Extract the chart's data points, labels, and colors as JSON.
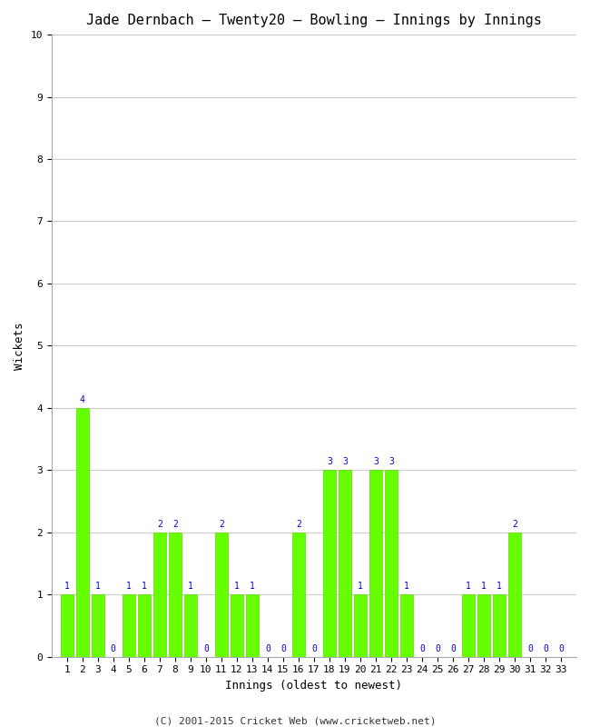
{
  "title": "Jade Dernbach – Twenty20 – Bowling – Innings by Innings",
  "xlabel": "Innings (oldest to newest)",
  "ylabel": "Wickets",
  "ylim": [
    0,
    10
  ],
  "yticks": [
    0,
    1,
    2,
    3,
    4,
    5,
    6,
    7,
    8,
    9,
    10
  ],
  "innings": [
    1,
    2,
    3,
    4,
    5,
    6,
    7,
    8,
    9,
    10,
    11,
    12,
    13,
    14,
    15,
    16,
    17,
    18,
    19,
    20,
    21,
    22,
    23,
    24,
    25,
    26,
    27,
    28,
    29,
    30,
    31,
    32,
    33
  ],
  "wickets": [
    1,
    4,
    1,
    0,
    1,
    1,
    2,
    2,
    1,
    0,
    2,
    1,
    1,
    0,
    0,
    2,
    0,
    3,
    3,
    1,
    3,
    3,
    1,
    0,
    0,
    0,
    1,
    1,
    1,
    2,
    0,
    0,
    0
  ],
  "bar_color": "#66ff00",
  "bar_edge_color": "#55dd00",
  "label_color": "#0000cc",
  "background_color": "#ffffff",
  "grid_color": "#cccccc",
  "title_fontsize": 11,
  "axis_fontsize": 9,
  "label_fontsize": 7,
  "tick_fontsize": 8,
  "footer": "(C) 2001-2015 Cricket Web (www.cricketweb.net)"
}
